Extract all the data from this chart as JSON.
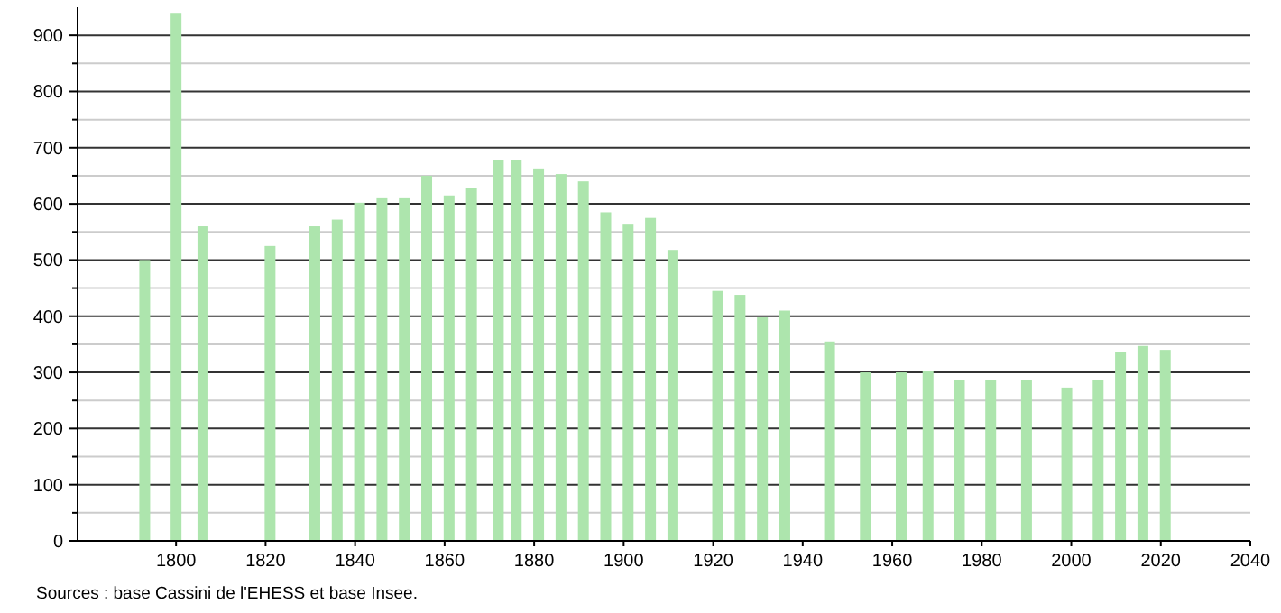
{
  "chart_data": {
    "type": "bar",
    "x": [
      1793,
      1800,
      1806,
      1821,
      1831,
      1836,
      1841,
      1846,
      1851,
      1856,
      1861,
      1866,
      1872,
      1876,
      1881,
      1886,
      1891,
      1896,
      1901,
      1906,
      1911,
      1921,
      1926,
      1931,
      1936,
      1946,
      1954,
      1962,
      1968,
      1975,
      1982,
      1990,
      1999,
      2006,
      2011,
      2016,
      2021
    ],
    "values": [
      500,
      940,
      560,
      525,
      560,
      572,
      602,
      610,
      610,
      650,
      615,
      628,
      678,
      678,
      663,
      653,
      640,
      585,
      563,
      575,
      518,
      445,
      438,
      398,
      410,
      355,
      300,
      300,
      302,
      287,
      287,
      287,
      273,
      287,
      337,
      347,
      340
    ],
    "color": "#ade5ad",
    "xlim": [
      1778,
      2040
    ],
    "xticks": [
      1800,
      1820,
      1840,
      1860,
      1880,
      1900,
      1920,
      1940,
      1960,
      1980,
      2000,
      2020,
      2040
    ],
    "ylim": [
      0,
      950
    ],
    "yticks": [
      0,
      {
        "value": 50,
        "label": null
      },
      100,
      {
        "value": 150,
        "label": null
      },
      200,
      {
        "value": 250,
        "label": null
      },
      300,
      {
        "value": 350,
        "label": null
      },
      400,
      {
        "value": 450,
        "label": null
      },
      500,
      {
        "value": 550,
        "label": null
      },
      600,
      {
        "value": 650,
        "label": null
      },
      700,
      {
        "value": 750,
        "label": null
      },
      800,
      {
        "value": 850,
        "label": null
      },
      900
    ],
    "grid": "y",
    "annotations": [
      "Sources : base Cassini de l'EHESS et base Insee."
    ]
  }
}
